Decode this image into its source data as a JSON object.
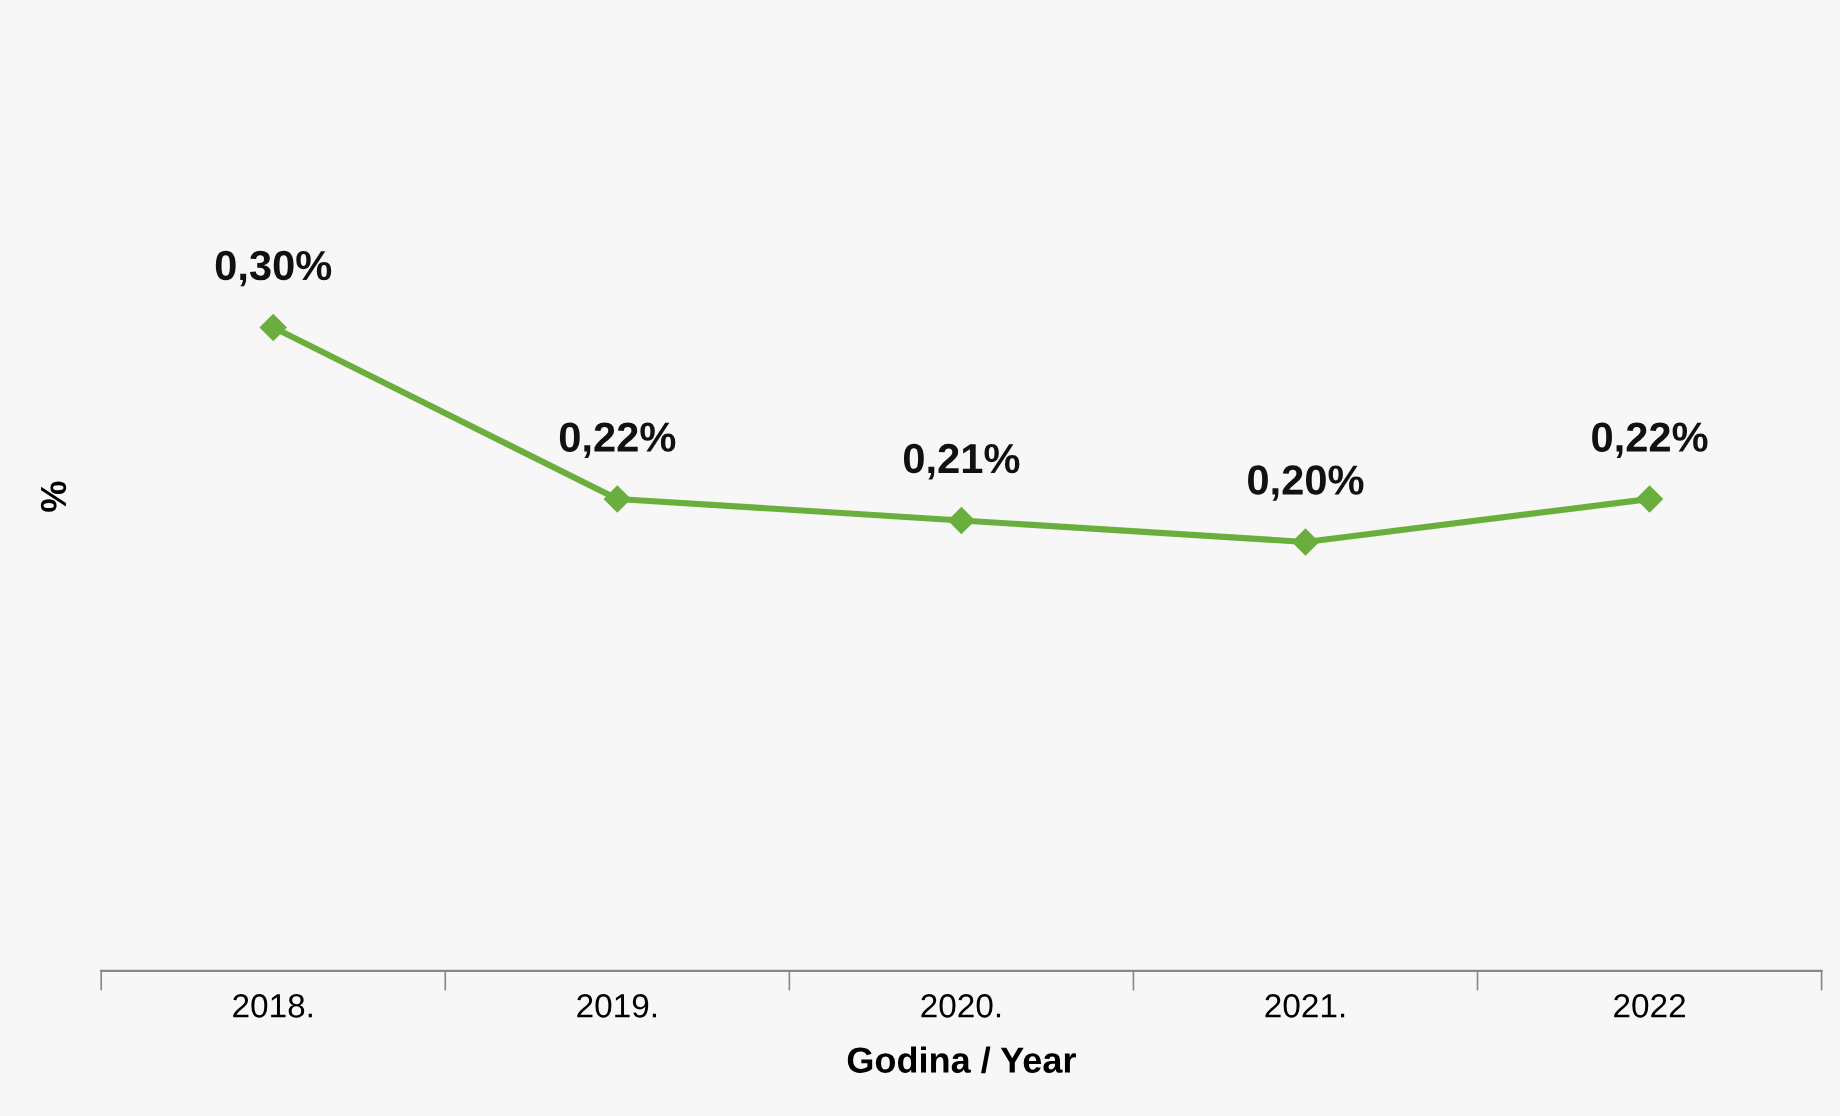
{
  "chart_data": {
    "type": "line",
    "xlabel": "Godina / Year",
    "ylabel": "%",
    "categories": [
      "2018.",
      "2019.",
      "2020.",
      "2021.",
      "2022"
    ],
    "series": [
      {
        "color": "#6aaf3d",
        "values": [
          0.3,
          0.22,
          0.21,
          0.2,
          0.22
        ],
        "value_labels": [
          "0,30%",
          "0,22%",
          "0,21%",
          "0,20%",
          "0,22%"
        ]
      }
    ],
    "tick_labels": "x",
    "marker": "diamond",
    "line_style": "solid",
    "grid": false
  }
}
